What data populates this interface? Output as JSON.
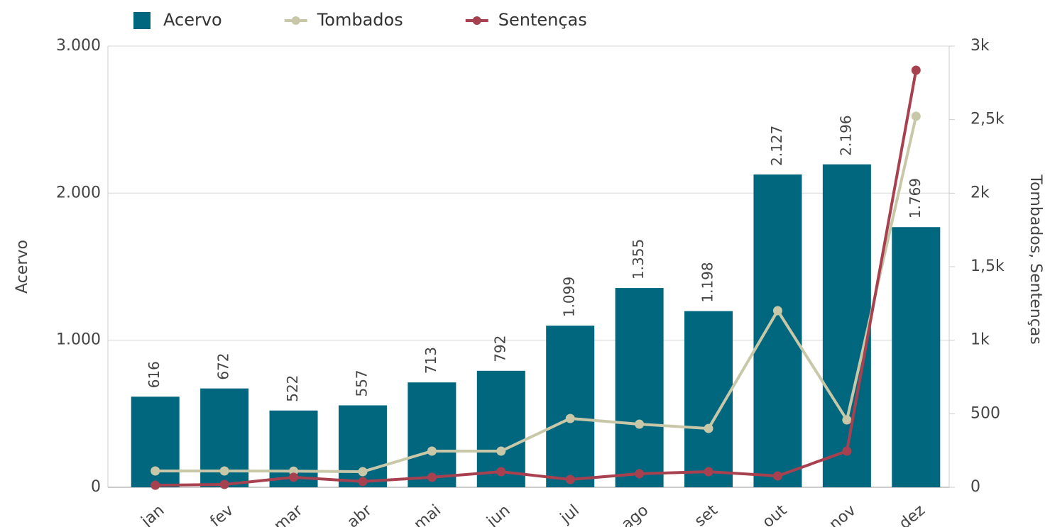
{
  "chart_data": {
    "type": "bar_line",
    "categories": [
      "jan",
      "fev",
      "mar",
      "abr",
      "mai",
      "jun",
      "jul",
      "ago",
      "set",
      "out",
      "nov",
      "dez"
    ],
    "series": [
      {
        "name": "Acervo",
        "type": "bar",
        "color": "#00677f",
        "axis": "y",
        "values": [
          616,
          672,
          522,
          557,
          713,
          792,
          1099,
          1355,
          1198,
          2127,
          2196,
          1769
        ],
        "value_labels": [
          "616",
          "672",
          "522",
          "557",
          "713",
          "792",
          "1.099",
          "1.355",
          "1.198",
          "2.127",
          "2.196",
          "1.769"
        ]
      },
      {
        "name": "Tombados",
        "type": "line",
        "color": "#c8c8a9",
        "axis": "y2",
        "values": [
          111,
          111,
          110,
          106,
          246,
          246,
          468,
          429,
          400,
          1201,
          458,
          2523
        ]
      },
      {
        "name": "Sentenças",
        "type": "line",
        "color": "#a8414f",
        "axis": "y2",
        "values": [
          14,
          19,
          68,
          39,
          68,
          106,
          53,
          92,
          106,
          77,
          246,
          2836
        ]
      }
    ],
    "y_label": "Acervo",
    "y2_label": "Tombados, Sentenças",
    "ylim": [
      0,
      3000
    ],
    "yticks": [
      0,
      {
        "value": 1000,
        "label": "1.000"
      },
      {
        "value": 2000,
        "label": "2.000"
      },
      {
        "value": 3000,
        "label": "3.000"
      }
    ],
    "y2lim": [
      0,
      3000
    ],
    "y2ticks": [
      0,
      500,
      {
        "value": 1000,
        "label": "1k"
      },
      {
        "value": 1500,
        "label": "1,5k"
      },
      {
        "value": 2000,
        "label": "2k"
      },
      {
        "value": 2500,
        "label": "2,5k"
      },
      {
        "value": 3000,
        "label": "3k"
      }
    ],
    "grid": true,
    "legend": "top"
  }
}
